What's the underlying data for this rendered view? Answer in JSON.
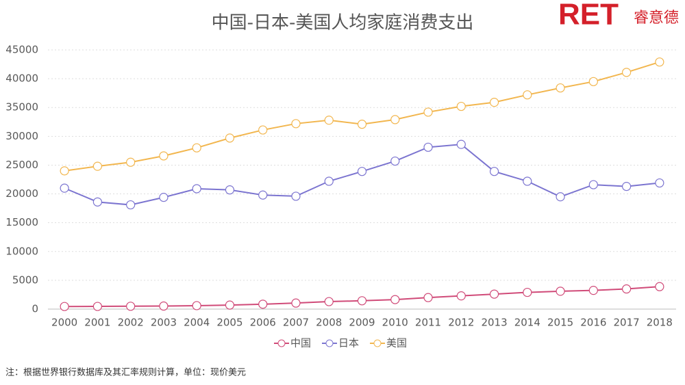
{
  "logo": {
    "mark": "RET",
    "text": "睿意德"
  },
  "chart_data": {
    "type": "line",
    "title": "中国-日本-美国人均家庭消费支出",
    "note": "注：根据世界银行数据库及其汇率规则计算，单位：现价美元",
    "categories": [
      "2000",
      "2001",
      "2002",
      "2003",
      "2004",
      "2005",
      "2006",
      "2007",
      "2008",
      "2009",
      "2010",
      "2011",
      "2012",
      "2013",
      "2014",
      "2015",
      "2016",
      "2017",
      "2018"
    ],
    "series": [
      {
        "name": "中国",
        "color": "#d04a78",
        "values": [
          450,
          470,
          500,
          530,
          600,
          700,
          850,
          1050,
          1300,
          1450,
          1650,
          2000,
          2300,
          2600,
          2900,
          3100,
          3250,
          3500,
          3900
        ]
      },
      {
        "name": "日本",
        "color": "#7b74d0",
        "values": [
          21000,
          18600,
          18100,
          19400,
          20900,
          20700,
          19800,
          19600,
          22200,
          23900,
          25700,
          28100,
          28600,
          23900,
          22200,
          19500,
          21600,
          21300,
          21900
        ]
      },
      {
        "name": "美国",
        "color": "#f2b64e",
        "values": [
          24000,
          24800,
          25500,
          26600,
          28000,
          29700,
          31100,
          32200,
          32800,
          32100,
          32900,
          34200,
          35200,
          35900,
          37200,
          38400,
          39500,
          41100,
          42900
        ]
      }
    ],
    "ylim": [
      0,
      45000
    ],
    "yticks": [
      0,
      5000,
      10000,
      15000,
      20000,
      25000,
      30000,
      35000,
      40000,
      45000
    ],
    "grid": true,
    "legend": "bottom"
  }
}
